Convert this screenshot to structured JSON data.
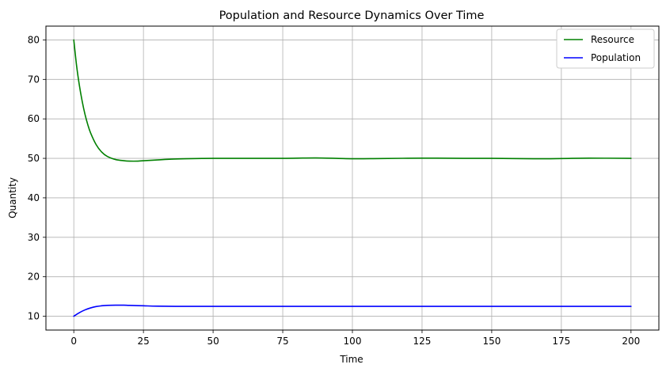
{
  "chart_data": {
    "type": "line",
    "title": "Population and Resource Dynamics Over Time",
    "xlabel": "Time",
    "ylabel": "Quantity",
    "xlim": [
      -10,
      210
    ],
    "ylim": [
      6.5,
      83.5
    ],
    "xticks": [
      0,
      25,
      50,
      75,
      100,
      125,
      150,
      175,
      200
    ],
    "yticks": [
      10,
      20,
      30,
      40,
      50,
      60,
      70,
      80
    ],
    "grid": true,
    "legend_position": "top-right",
    "series": [
      {
        "name": "Resource",
        "color": "#008000",
        "x": [
          0,
          1,
          2,
          3,
          4,
          5,
          6,
          8,
          10,
          12,
          15,
          18,
          20,
          23,
          25,
          30,
          35,
          40,
          50,
          60,
          75,
          87,
          100,
          110,
          125,
          140,
          150,
          165,
          175,
          185,
          200
        ],
        "y": [
          80,
          73.5,
          68.5,
          64.5,
          61.2,
          58.6,
          56.5,
          53.5,
          51.6,
          50.5,
          49.7,
          49.4,
          49.3,
          49.3,
          49.4,
          49.6,
          49.8,
          49.9,
          50.0,
          50.0,
          50.0,
          50.1,
          49.9,
          49.95,
          50.05,
          50.0,
          50.0,
          49.9,
          49.95,
          50.05,
          50.0
        ]
      },
      {
        "name": "Population",
        "color": "#0000ff",
        "x": [
          0,
          2,
          4,
          6,
          8,
          10,
          12,
          15,
          18,
          20,
          25,
          30,
          40,
          50,
          75,
          100,
          125,
          150,
          175,
          200
        ],
        "y": [
          10.0,
          10.9,
          11.6,
          12.1,
          12.45,
          12.65,
          12.75,
          12.8,
          12.8,
          12.75,
          12.65,
          12.55,
          12.5,
          12.5,
          12.5,
          12.5,
          12.5,
          12.5,
          12.5,
          12.5
        ]
      }
    ]
  }
}
